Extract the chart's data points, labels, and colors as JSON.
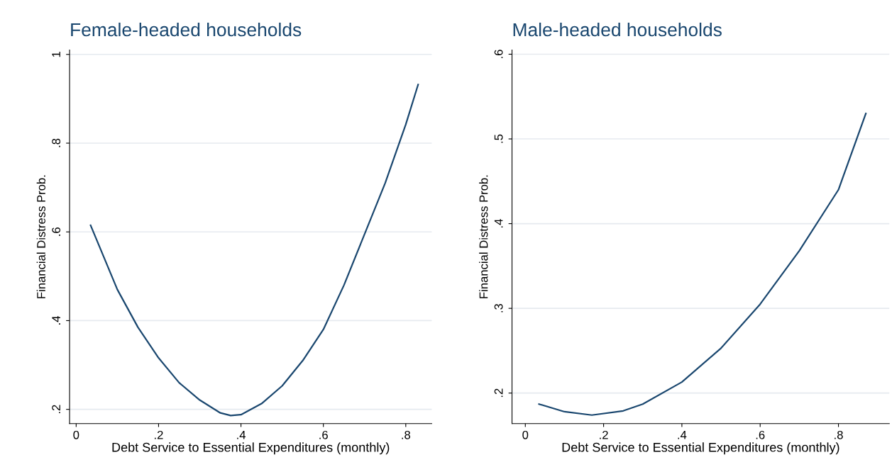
{
  "chart_data": [
    {
      "type": "line",
      "title": "Female-headed households",
      "xlabel": "Debt Service to Essential Expenditures (monthly)",
      "ylabel": "Financial Distress Prob.",
      "x": [
        0.035,
        0.1,
        0.15,
        0.2,
        0.25,
        0.3,
        0.35,
        0.375,
        0.4,
        0.45,
        0.5,
        0.55,
        0.6,
        0.65,
        0.7,
        0.75,
        0.8,
        0.83
      ],
      "series": [
        {
          "color": "#1a476f",
          "values": [
            0.615,
            0.47,
            0.385,
            0.316,
            0.26,
            0.221,
            0.192,
            0.186,
            0.188,
            0.213,
            0.253,
            0.31,
            0.38,
            0.48,
            0.595,
            0.71,
            0.842,
            0.932
          ]
        }
      ],
      "xlim": [
        -0.016,
        0.863
      ],
      "ylim": [
        0.168,
        1.01
      ],
      "xticks": [
        0,
        {
          "value": 0.2,
          "label": ".2"
        },
        {
          "value": 0.4,
          "label": ".4"
        },
        {
          "value": 0.6,
          "label": ".6"
        },
        {
          "value": 0.8,
          "label": ".8"
        }
      ],
      "yticks": [
        {
          "value": 0.2,
          "label": ".2"
        },
        {
          "value": 0.4,
          "label": ".4"
        },
        {
          "value": 0.6,
          "label": ".6"
        },
        {
          "value": 0.8,
          "label": ".8"
        },
        1
      ],
      "grid": "y",
      "line_style": "solid"
    },
    {
      "type": "line",
      "title": "Male-headed households",
      "xlabel": "Debt Service to Essential Expenditures (monthly)",
      "ylabel": "Financial Distress Prob.",
      "x": [
        0.035,
        0.1,
        0.17,
        0.25,
        0.3,
        0.4,
        0.5,
        0.6,
        0.7,
        0.8,
        0.87
      ],
      "series": [
        {
          "color": "#1a476f",
          "values": [
            0.187,
            0.178,
            0.174,
            0.179,
            0.187,
            0.213,
            0.253,
            0.305,
            0.368,
            0.44,
            0.53
          ]
        }
      ],
      "xlim": [
        -0.034,
        0.93
      ],
      "ylim": [
        0.164,
        0.605
      ],
      "xticks": [
        0,
        {
          "value": 0.2,
          "label": ".2"
        },
        {
          "value": 0.4,
          "label": ".4"
        },
        {
          "value": 0.6,
          "label": ".6"
        },
        {
          "value": 0.8,
          "label": ".8"
        }
      ],
      "yticks": [
        {
          "value": 0.2,
          "label": ".2"
        },
        {
          "value": 0.3,
          "label": ".3"
        },
        {
          "value": 0.4,
          "label": ".4"
        },
        {
          "value": 0.5,
          "label": ".5"
        },
        {
          "value": 0.6,
          "label": ".6"
        }
      ],
      "grid": "y",
      "line_style": "solid"
    }
  ]
}
